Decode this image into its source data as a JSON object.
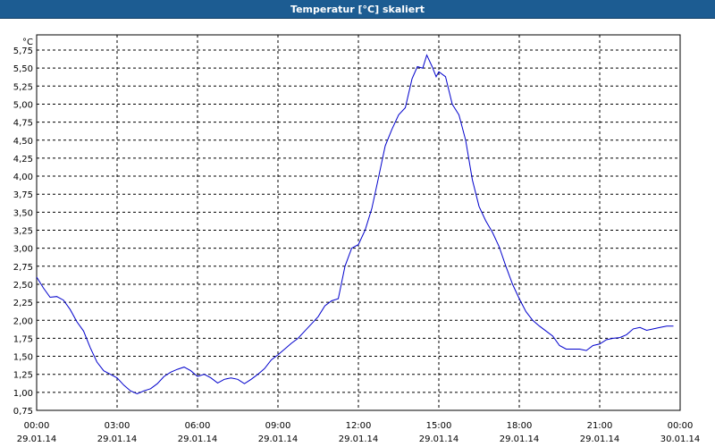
{
  "window": {
    "title": "Temperatur [°C] skaliert"
  },
  "colors": {
    "titlebar": "#1c5c92",
    "line": "#0000cc",
    "grid": "#000000"
  },
  "chart_data": {
    "type": "line",
    "title": "Temperatur [°C] skaliert",
    "ylabel": "°C",
    "xlabel": "",
    "ylim": [
      0.75,
      5.85
    ],
    "yticks": [
      "5,75",
      "5,50",
      "5,25",
      "5,00",
      "4,75",
      "4,50",
      "4,25",
      "4,00",
      "3,75",
      "3,50",
      "3,25",
      "3,00",
      "2,75",
      "2,50",
      "2,25",
      "2,00",
      "1,75",
      "1,50",
      "1,25",
      "1,00",
      "0,75"
    ],
    "xlim": [
      0,
      24
    ],
    "xticks": [
      {
        "time": "00:00",
        "date": "29.01.14"
      },
      {
        "time": "03:00",
        "date": "29.01.14"
      },
      {
        "time": "06:00",
        "date": "29.01.14"
      },
      {
        "time": "09:00",
        "date": "29.01.14"
      },
      {
        "time": "12:00",
        "date": "29.01.14"
      },
      {
        "time": "15:00",
        "date": "29.01.14"
      },
      {
        "time": "18:00",
        "date": "29.01.14"
      },
      {
        "time": "21:00",
        "date": "29.01.14"
      },
      {
        "time": "00:00",
        "date": "30.01.14"
      }
    ],
    "grid": true,
    "series": [
      {
        "x": [
          0,
          0.25,
          0.5,
          0.75,
          1,
          1.25,
          1.5,
          1.75,
          2,
          2.25,
          2.5,
          2.75,
          3,
          3.25,
          3.5,
          3.75,
          4,
          4.25,
          4.5,
          4.75,
          5,
          5.25,
          5.5,
          5.75,
          6,
          6.25,
          6.5,
          6.75,
          7,
          7.25,
          7.5,
          7.75,
          8,
          8.25,
          8.5,
          8.75,
          9,
          9.25,
          9.5,
          9.75,
          10,
          10.25,
          10.5,
          10.75,
          11,
          11.25,
          11.5,
          11.75,
          12,
          12.25,
          12.5,
          12.75,
          13,
          13.25,
          13.5,
          13.75,
          14,
          14.2,
          14.4,
          14.55,
          14.75,
          14.9,
          15,
          15.25,
          15.5,
          15.75,
          16,
          16.25,
          16.5,
          16.75,
          17,
          17.25,
          17.5,
          17.75,
          18,
          18.25,
          18.5,
          18.75,
          19,
          19.25,
          19.5,
          19.75,
          20,
          20.25,
          20.5,
          20.75,
          21,
          21.25,
          21.5,
          21.75,
          22,
          22.25,
          22.5,
          22.75,
          23,
          23.25,
          23.5,
          23.75
        ],
        "values": [
          2.6,
          2.45,
          2.32,
          2.33,
          2.28,
          2.15,
          1.98,
          1.85,
          1.62,
          1.42,
          1.3,
          1.25,
          1.2,
          1.1,
          1.02,
          0.98,
          1.02,
          1.05,
          1.12,
          1.22,
          1.28,
          1.32,
          1.35,
          1.3,
          1.22,
          1.25,
          1.2,
          1.13,
          1.18,
          1.2,
          1.18,
          1.12,
          1.18,
          1.25,
          1.33,
          1.45,
          1.52,
          1.6,
          1.68,
          1.75,
          1.85,
          1.95,
          2.05,
          2.2,
          2.27,
          2.3,
          2.75,
          3.0,
          3.05,
          3.25,
          3.55,
          3.98,
          4.42,
          4.65,
          4.85,
          4.95,
          5.35,
          5.52,
          5.5,
          5.68,
          5.52,
          5.38,
          5.45,
          5.38,
          5.0,
          4.85,
          4.5,
          3.95,
          3.58,
          3.38,
          3.22,
          3.02,
          2.75,
          2.5,
          2.3,
          2.12,
          2.0,
          1.92,
          1.85,
          1.78,
          1.65,
          1.6,
          1.6,
          1.6,
          1.58,
          1.65,
          1.67,
          1.73,
          1.75,
          1.76,
          1.8,
          1.88,
          1.9,
          1.86,
          1.88,
          1.9,
          1.92,
          1.92
        ]
      }
    ]
  }
}
